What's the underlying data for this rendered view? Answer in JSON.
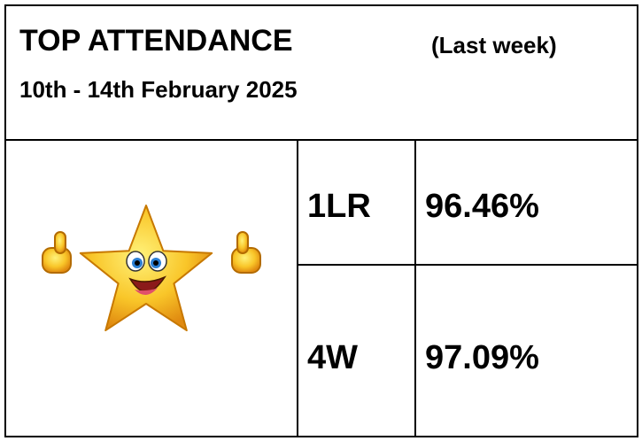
{
  "header": {
    "title": "TOP ATTENDANCE",
    "note": "(Last week)",
    "dates": "10th - 14th February 2025"
  },
  "table": {
    "rows": [
      [
        "1LR",
        "96.46%"
      ],
      [
        "4W",
        "97.09%"
      ]
    ]
  }
}
